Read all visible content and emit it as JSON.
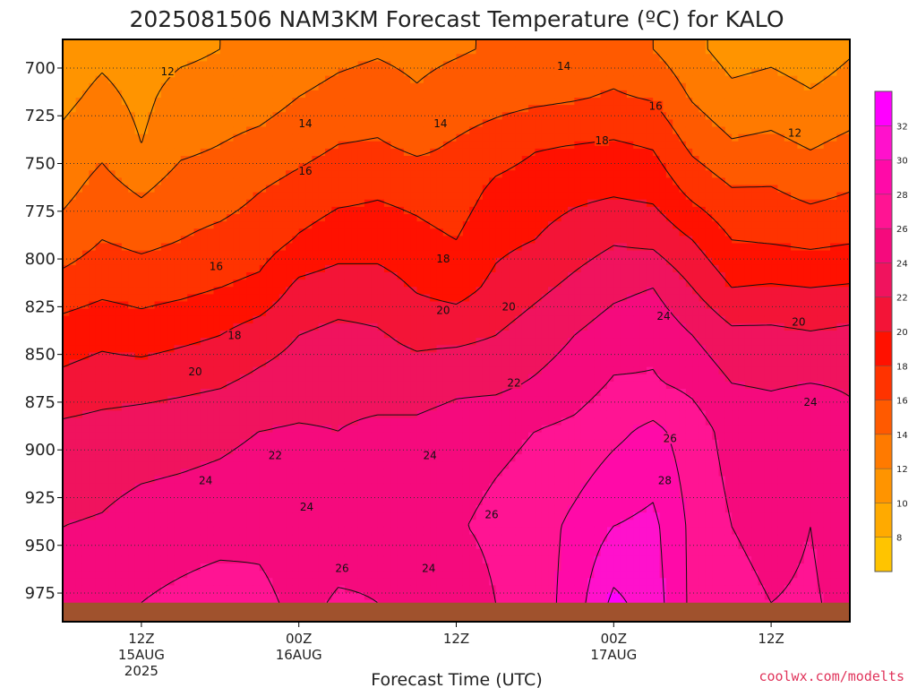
{
  "chart_data": {
    "type": "heatmap",
    "title": "2025081506 NAM3KM Forecast Temperature (ºC) for KALO",
    "xlabel": "Forecast Time (UTC)",
    "ylabel": "",
    "credit": "coolwx.com/modelts",
    "x_range_hours": [
      6,
      66
    ],
    "y_range_hpa": [
      685,
      990
    ],
    "y_ticks": [
      "700",
      "725",
      "750",
      "775",
      "800",
      "825",
      "850",
      "875",
      "900",
      "925",
      "950",
      "975"
    ],
    "y_tick_values": [
      700,
      725,
      750,
      775,
      800,
      825,
      850,
      875,
      900,
      925,
      950,
      975
    ],
    "x_ticks": [
      {
        "hour": 12,
        "line1": "12Z",
        "line2": "15AUG",
        "line3": "2025"
      },
      {
        "hour": 24,
        "line1": "00Z",
        "line2": "16AUG",
        "line3": ""
      },
      {
        "hour": 36,
        "line1": "12Z",
        "line2": "",
        "line3": ""
      },
      {
        "hour": 48,
        "line1": "00Z",
        "line2": "17AUG",
        "line3": ""
      },
      {
        "hour": 60,
        "line1": "12Z",
        "line2": "",
        "line3": ""
      }
    ],
    "colorbar": {
      "levels": [
        32,
        30,
        28,
        26,
        24,
        22,
        20,
        18,
        16,
        14,
        12,
        10,
        8
      ],
      "colors": [
        "#ff00ff",
        "#ff11cc",
        "#ff0aa8",
        "#ff1493",
        "#f50a7d",
        "#f0135e",
        "#f31437",
        "#ff1100",
        "#ff3300",
        "#ff5a00",
        "#ff7a00",
        "#ff9400",
        "#ffaa00",
        "#ffc400"
      ]
    },
    "surface_pressure_hpa": 980,
    "profiles": [
      {
        "hour": 6,
        "temps": [
          10.8,
          11.5,
          12.5,
          13.5,
          14.8,
          16.8,
          19.0,
          20.5,
          22.5,
          24.0,
          24.5
        ]
      },
      {
        "hour": 9,
        "temps": [
          11.5,
          12.5,
          13.5,
          14.8,
          16.0,
          17.5,
          19.5,
          21.0,
          22.8,
          24.2,
          24.8
        ]
      },
      {
        "hour": 12,
        "temps": [
          11.0,
          11.5,
          12.0,
          13.8,
          15.5,
          17.2,
          19.0,
          21.2,
          23.0,
          24.8,
          26.0
        ]
      },
      {
        "hour": 15,
        "temps": [
          11.5,
          12.8,
          13.5,
          15.0,
          16.0,
          17.5,
          19.5,
          21.5,
          23.2,
          25.0,
          26.5
        ]
      },
      {
        "hour": 18,
        "temps": [
          12.0,
          13.0,
          14.0,
          15.2,
          16.5,
          18.0,
          20.0,
          21.8,
          23.5,
          25.2,
          27.0
        ]
      },
      {
        "hour": 21,
        "temps": [
          12.5,
          13.2,
          14.5,
          16.0,
          17.0,
          18.5,
          21.0,
          22.5,
          24.0,
          25.5,
          26.5
        ]
      },
      {
        "hour": 24,
        "temps": [
          13.0,
          14.0,
          15.2,
          16.8,
          18.2,
          20.5,
          22.0,
          23.0,
          24.2,
          25.0,
          25.5
        ]
      },
      {
        "hour": 27,
        "temps": [
          13.5,
          14.5,
          16.0,
          17.5,
          19.0,
          21.0,
          22.5,
          23.2,
          24.0,
          25.2,
          26.2
        ]
      },
      {
        "hour": 30,
        "temps": [
          13.8,
          14.8,
          16.2,
          17.8,
          19.0,
          21.0,
          22.2,
          23.0,
          24.5,
          25.5,
          26.0
        ]
      },
      {
        "hour": 33,
        "temps": [
          13.5,
          14.2,
          15.5,
          17.5,
          18.5,
          19.8,
          21.5,
          23.0,
          24.5,
          25.5,
          25.0
        ]
      },
      {
        "hour": 36,
        "temps": [
          13.8,
          14.8,
          16.2,
          17.0,
          18.0,
          19.2,
          21.5,
          23.5,
          25.0,
          25.8,
          24.5
        ]
      },
      {
        "hour": 39,
        "temps": [
          14.2,
          15.2,
          17.0,
          18.5,
          19.5,
          20.5,
          22.0,
          23.5,
          25.5,
          26.5,
          26.0
        ]
      },
      {
        "hour": 42,
        "temps": [
          14.5,
          15.5,
          17.8,
          19.0,
          20.0,
          21.5,
          23.0,
          24.2,
          26.0,
          27.0,
          26.8
        ]
      },
      {
        "hour": 45,
        "temps": [
          14.8,
          15.8,
          18.0,
          19.5,
          21.0,
          22.5,
          24.0,
          25.0,
          26.5,
          28.5,
          29.0
        ]
      },
      {
        "hour": 48,
        "temps": [
          15.0,
          16.2,
          18.2,
          19.8,
          21.8,
          23.5,
          25.0,
          26.2,
          27.5,
          30.0,
          32.5
        ]
      },
      {
        "hour": 51,
        "temps": [
          14.0,
          15.8,
          17.8,
          19.5,
          21.5,
          24.0,
          25.5,
          26.2,
          28.5,
          30.5,
          31.0
        ]
      },
      {
        "hour": 54,
        "temps": [
          12.5,
          13.8,
          15.5,
          17.5,
          20.0,
          22.0,
          24.0,
          25.5,
          27.0,
          27.5,
          27.5
        ]
      },
      {
        "hour": 57,
        "temps": [
          11.2,
          12.5,
          14.2,
          16.2,
          18.0,
          20.0,
          22.5,
          24.0,
          25.2,
          26.0,
          26.5
        ]
      },
      {
        "hour": 60,
        "temps": [
          11.5,
          12.8,
          14.5,
          16.2,
          17.8,
          20.2,
          22.5,
          23.8,
          25.0,
          25.5,
          26.0
        ]
      },
      {
        "hour": 63,
        "temps": [
          11.0,
          12.2,
          13.8,
          15.5,
          17.5,
          20.0,
          22.2,
          24.0,
          25.5,
          26.0,
          26.2
        ]
      },
      {
        "hour": 66,
        "temps": [
          11.8,
          12.8,
          14.5,
          16.0,
          17.8,
          20.2,
          22.5,
          23.8,
          24.5,
          25.2,
          25.5
        ]
      }
    ],
    "profile_pressures_hpa": [
      690,
      715,
      740,
      765,
      790,
      815,
      840,
      865,
      890,
      940,
      980
    ],
    "contour_labels": [
      {
        "text": "12",
        "hour": 14.0,
        "p": 702
      },
      {
        "text": "14",
        "hour": 44.2,
        "p": 699
      },
      {
        "text": "16",
        "hour": 51.2,
        "p": 720
      },
      {
        "text": "12",
        "hour": 61.8,
        "p": 734
      },
      {
        "text": "14",
        "hour": 24.5,
        "p": 729
      },
      {
        "text": "14",
        "hour": 34.8,
        "p": 729
      },
      {
        "text": "18",
        "hour": 47.1,
        "p": 738
      },
      {
        "text": "16",
        "hour": 24.5,
        "p": 754
      },
      {
        "text": "16",
        "hour": 17.7,
        "p": 804
      },
      {
        "text": "18",
        "hour": 35.0,
        "p": 800
      },
      {
        "text": "20",
        "hour": 35.0,
        "p": 827
      },
      {
        "text": "20",
        "hour": 40.0,
        "p": 825
      },
      {
        "text": "24",
        "hour": 51.8,
        "p": 830
      },
      {
        "text": "20",
        "hour": 62.1,
        "p": 833
      },
      {
        "text": "18",
        "hour": 19.1,
        "p": 840
      },
      {
        "text": "20",
        "hour": 16.1,
        "p": 859
      },
      {
        "text": "22",
        "hour": 40.4,
        "p": 865
      },
      {
        "text": "24",
        "hour": 63.0,
        "p": 875
      },
      {
        "text": "26",
        "hour": 52.3,
        "p": 894
      },
      {
        "text": "22",
        "hour": 22.2,
        "p": 903
      },
      {
        "text": "24",
        "hour": 34.0,
        "p": 903
      },
      {
        "text": "24",
        "hour": 16.9,
        "p": 916
      },
      {
        "text": "28",
        "hour": 51.9,
        "p": 916
      },
      {
        "text": "24",
        "hour": 24.6,
        "p": 930
      },
      {
        "text": "26",
        "hour": 38.7,
        "p": 934
      },
      {
        "text": "26",
        "hour": 27.3,
        "p": 962
      },
      {
        "text": "24",
        "hour": 33.9,
        "p": 962
      }
    ]
  }
}
